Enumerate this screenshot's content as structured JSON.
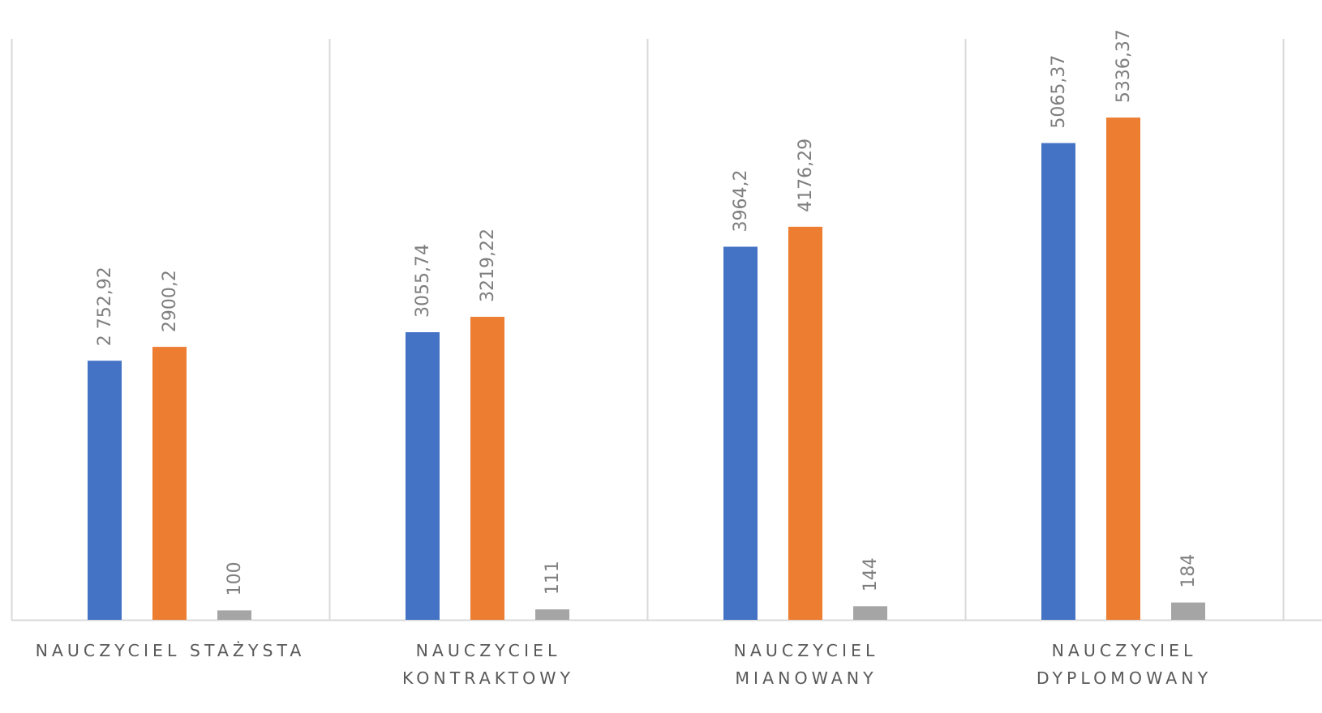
{
  "chart_data": {
    "type": "bar",
    "categories": [
      [
        "NAUCZYCIEL STAŻYSTA"
      ],
      [
        "NAUCZYCIEL",
        "KONTRAKTOWY"
      ],
      [
        "NAUCZYCIEL",
        "MIANOWANY"
      ],
      [
        "NAUCZYCIEL",
        "DYPLOMOWANY"
      ]
    ],
    "series": [
      {
        "color": "#4472c4",
        "values": [
          2752.92,
          3055.74,
          3964.2,
          5065.37
        ],
        "labels": [
          "2 752,92",
          "3055,74",
          "3964,2",
          "5065,37"
        ]
      },
      {
        "color": "#ed7d31",
        "values": [
          2900.2,
          3219.22,
          4176.29,
          5336.37
        ],
        "labels": [
          "2900,2",
          "3219,22",
          "4176,29",
          "5336,37"
        ]
      },
      {
        "color": "#a5a5a5",
        "values": [
          100,
          111,
          144,
          184
        ],
        "labels": [
          "100",
          "111",
          "144",
          "184"
        ]
      }
    ],
    "ylim": [
      0,
      6000
    ],
    "grid": "vertical category separators",
    "legend": "none"
  }
}
